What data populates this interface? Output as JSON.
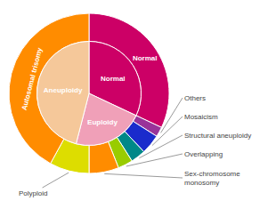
{
  "chart_data": {
    "type": "pie",
    "series": [
      {
        "categories": [
          "Normal",
          "Others",
          "Mosaicism",
          "Structural aneuploidy",
          "Overlapping",
          "Sex-chromosome\nmonosomy",
          "Polyploid",
          "Autosomal trisomy"
        ],
        "values": [
          32,
          2,
          4,
          3,
          3,
          6,
          8,
          42
        ],
        "colors": [
          "#cc0066",
          "#993399",
          "#1a2bcc",
          "#008888",
          "#99cc00",
          "#ff8c00",
          "#dddd00",
          "#ff8c00"
        ]
      },
      {
        "categories": [
          "Normal",
          "Euploidy",
          "Aneuploidy"
        ],
        "values": [
          32,
          22,
          46
        ],
        "colors": [
          "#cc0066",
          "#f0a0b8",
          "#f5c89a"
        ]
      }
    ]
  }
}
